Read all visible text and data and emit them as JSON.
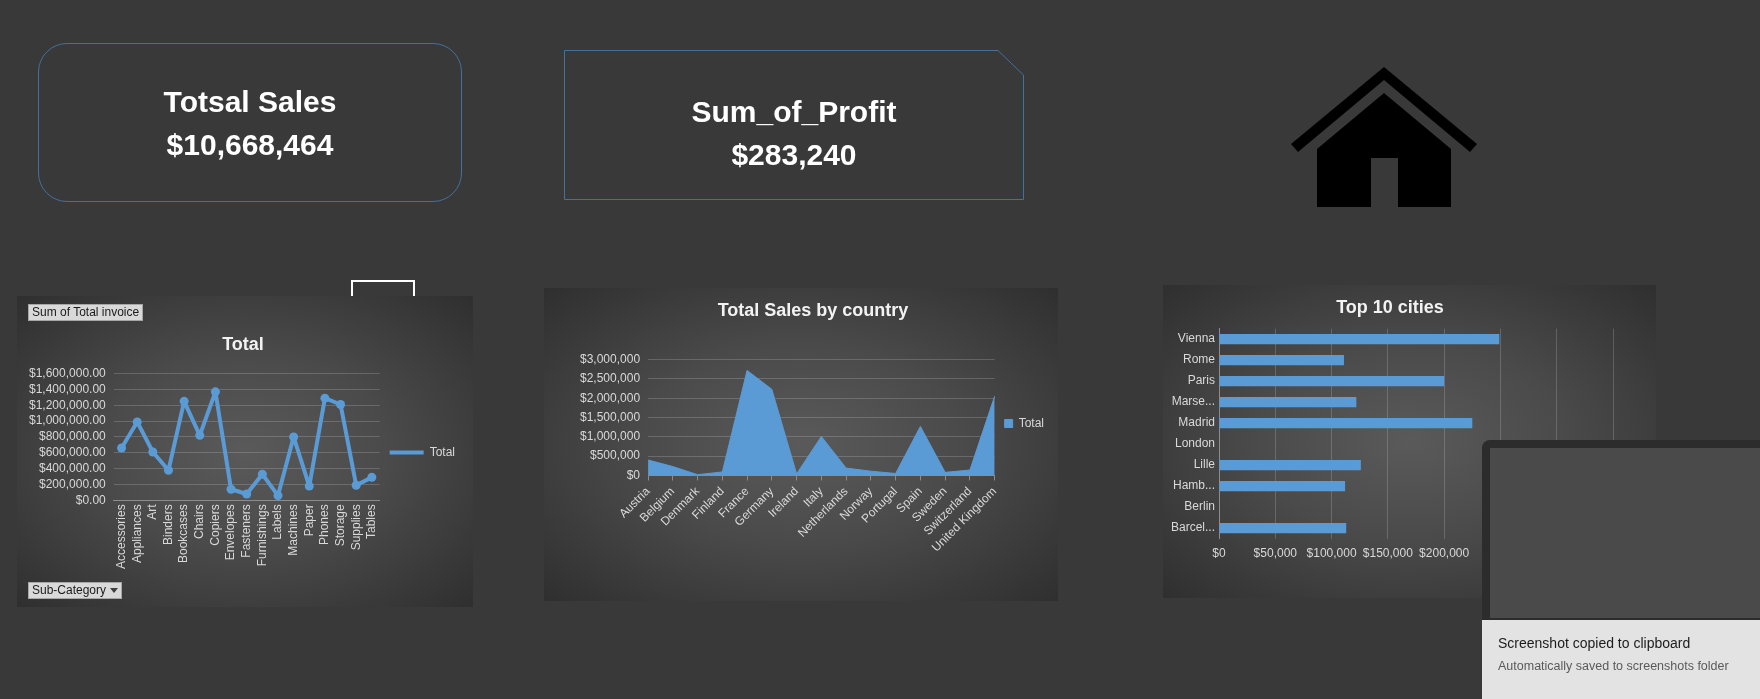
{
  "chart_data": [
    {
      "type": "other",
      "title": "Totsal Sales",
      "annotations": [
        "$10,668,464"
      ]
    },
    {
      "type": "other",
      "title": "Sum_of_Profit",
      "annotations": [
        "$283,240"
      ]
    },
    {
      "type": "line",
      "title": "Total",
      "categories": [
        "Accessories",
        "Appliances",
        "Art",
        "Binders",
        "Bookcases",
        "Chairs",
        "Copiers",
        "Envelopes",
        "Fasteners",
        "Furnishings",
        "Labels",
        "Machines",
        "Paper",
        "Phones",
        "Storage",
        "Supplies",
        "Tables"
      ],
      "series": [
        {
          "name": "Total",
          "color": "#5b9bd5",
          "values": [
            660000,
            990000,
            610000,
            380000,
            1250000,
            820000,
            1370000,
            140000,
            80000,
            330000,
            60000,
            800000,
            180000,
            1290000,
            1210000,
            190000,
            290000
          ]
        }
      ],
      "ylim": [
        0,
        1600000
      ],
      "yticks": [
        {
          "value": 0,
          "label": "$0.00"
        },
        {
          "value": 200000,
          "label": "$200,000.00"
        },
        {
          "value": 400000,
          "label": "$400,000.00"
        },
        {
          "value": 600000,
          "label": "$600,000.00"
        },
        {
          "value": 800000,
          "label": "$800,000.00"
        },
        {
          "value": 1000000,
          "label": "$1,000,000.00"
        },
        {
          "value": 1200000,
          "label": "$1,200,000.00"
        },
        {
          "value": 1400000,
          "label": "$1,400,000.00"
        },
        {
          "value": 1600000,
          "label": "$1,600,000.00"
        }
      ],
      "grid": "y",
      "legend": "right",
      "marker": "circle",
      "line_style": "solid",
      "annotations": [
        "Sum of Total invoice",
        "Sub-Category"
      ]
    },
    {
      "type": "area",
      "title": "Total Sales by country",
      "categories": [
        "Austria",
        "Belgium",
        "Denmark",
        "Finland",
        "France",
        "Germany",
        "Ireland",
        "Italy",
        "Netherlands",
        "Norway",
        "Portugal",
        "Spain",
        "Sweden",
        "Switzerland",
        "United Kingdom"
      ],
      "series": [
        {
          "name": "Total",
          "color": "#5b9bd5",
          "values": [
            400000,
            230000,
            20000,
            90000,
            2720000,
            2230000,
            40000,
            1010000,
            190000,
            110000,
            50000,
            1270000,
            80000,
            140000,
            2050000
          ]
        }
      ],
      "ylim": [
        0,
        3000000
      ],
      "yticks": [
        {
          "value": 0,
          "label": "$0"
        },
        {
          "value": 500000,
          "label": "$500,000"
        },
        {
          "value": 1000000,
          "label": "$1,000,000"
        },
        {
          "value": 1500000,
          "label": "$1,500,000"
        },
        {
          "value": 2000000,
          "label": "$2,000,000"
        },
        {
          "value": 2500000,
          "label": "$2,500,000"
        },
        {
          "value": 3000000,
          "label": "$3,000,000"
        }
      ],
      "grid": "y",
      "legend": "right"
    },
    {
      "type": "bar",
      "orientation": "horizontal",
      "title": "Top 10 cities",
      "categories": [
        "Vienna",
        "Rome",
        "Paris",
        "Marse...",
        "Madrid",
        "London",
        "Lille",
        "Hamb...",
        "Berlin",
        "Barcel..."
      ],
      "values": [
        249000,
        111000,
        200000,
        122000,
        225000,
        null,
        126000,
        112000,
        null,
        113000
      ],
      "color": "#5b9bd5",
      "xlim": [
        0,
        350000
      ],
      "xticks": [
        {
          "value": 0,
          "label": "$0"
        },
        {
          "value": 50000,
          "label": "$50,000"
        },
        {
          "value": 100000,
          "label": "$100,000"
        },
        {
          "value": 150000,
          "label": "$150,000"
        },
        {
          "value": 200000,
          "label": "$200,000"
        },
        {
          "value": 250000,
          "label": null
        },
        {
          "value": 300000,
          "label": null
        },
        {
          "value": 350000,
          "label": null
        }
      ],
      "grid": "x"
    },
    {
      "type": "other",
      "annotations": [
        "Screenshot copied to clipboard",
        "Automatically saved to screenshots folder"
      ]
    }
  ]
}
